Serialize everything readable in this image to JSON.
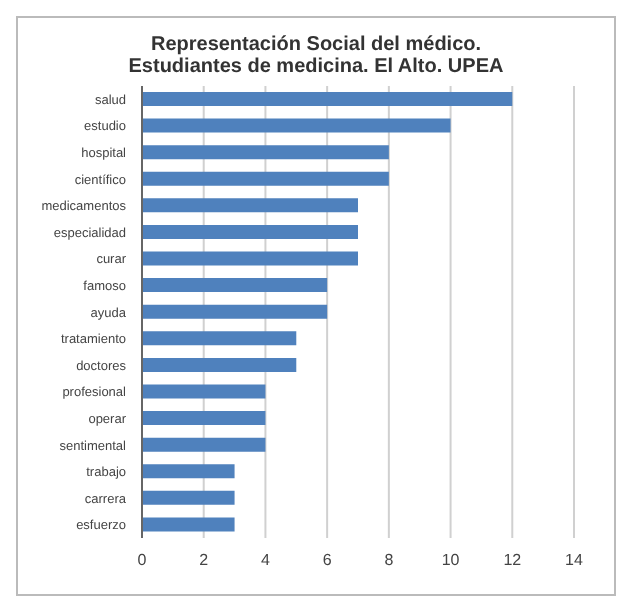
{
  "chart_data": {
    "type": "bar",
    "orientation": "horizontal",
    "title": "Representación Social del médico. Estudiantes de medicina. El Alto. UPEA",
    "categories": [
      "salud",
      "estudio",
      "hospital",
      "científico",
      "medicamentos",
      "especialidad",
      "curar",
      "famoso",
      "ayuda",
      "tratamiento",
      "doctores",
      "profesional",
      "operar",
      "sentimental",
      "trabajo",
      "carrera",
      "esfuerzo"
    ],
    "values": [
      12,
      10,
      8,
      8,
      7,
      7,
      7,
      6,
      6,
      5,
      5,
      4,
      4,
      4,
      3,
      3,
      3
    ],
    "color": "#4f81bd",
    "xlim": [
      0,
      14
    ],
    "xticks": [
      0,
      2,
      4,
      6,
      8,
      10,
      12,
      14
    ],
    "grid": "x"
  }
}
